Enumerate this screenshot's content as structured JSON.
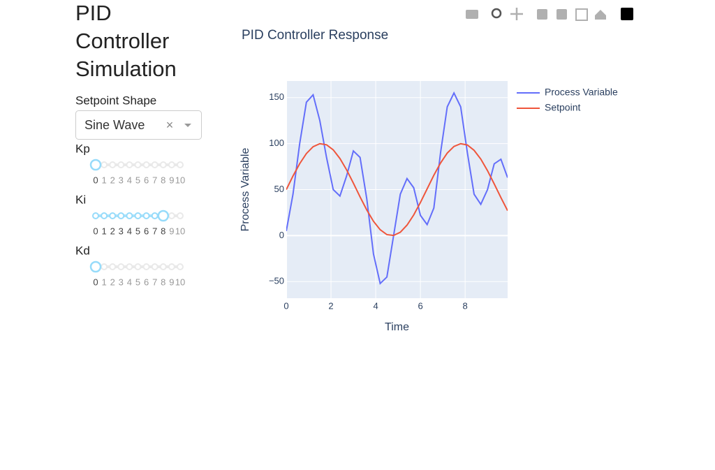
{
  "app": {
    "title": [
      "PID",
      "Controller",
      "Simulation"
    ],
    "dropdown_label": "Setpoint Shape",
    "dropdown_value": "Sine Wave",
    "sliders": [
      {
        "label": "Kp",
        "value": 0,
        "marks": [
          0,
          1,
          2,
          3,
          4,
          5,
          6,
          7,
          8,
          9,
          10
        ]
      },
      {
        "label": "Ki",
        "value": 8,
        "marks": [
          0,
          1,
          2,
          3,
          4,
          5,
          6,
          7,
          8,
          9,
          10
        ]
      },
      {
        "label": "Kd",
        "value": 0,
        "marks": [
          0,
          1,
          2,
          3,
          4,
          5,
          6,
          7,
          8,
          9,
          10
        ]
      }
    ]
  },
  "chart_data": {
    "type": "line",
    "title": "PID Controller Response",
    "x_label": "Time",
    "y_label": "Process Variable",
    "x": [
      0,
      0.3,
      0.6,
      0.9,
      1.2,
      1.5,
      1.8,
      2.1,
      2.4,
      2.7,
      3.0,
      3.3,
      3.6,
      3.9,
      4.2,
      4.5,
      4.8,
      5.1,
      5.4,
      5.7,
      6.0,
      6.3,
      6.6,
      6.9,
      7.2,
      7.5,
      7.8,
      8.1,
      8.4,
      8.7,
      9.0,
      9.3,
      9.6,
      9.9
    ],
    "series": [
      {
        "name": "Process Variable",
        "color": "#636efa",
        "values": [
          5,
          45,
          100,
          145,
          153,
          125,
          85,
          50,
          43,
          65,
          92,
          85,
          40,
          -20,
          -52,
          -45,
          0,
          45,
          62,
          52,
          22,
          12,
          30,
          90,
          140,
          155,
          140,
          90,
          45,
          34,
          50,
          78,
          83,
          63
        ]
      },
      {
        "name": "Setpoint",
        "color": "#ef553b",
        "values": [
          50,
          64.8,
          78.2,
          89.2,
          96.6,
          99.9,
          98.7,
          93.2,
          83.8,
          71.4,
          57.1,
          42.1,
          27.9,
          15.6,
          6.4,
          1.1,
          0.2,
          3.7,
          11.4,
          22.5,
          36.0,
          50.8,
          65.6,
          78.9,
          89.7,
          96.9,
          99.9,
          98.5,
          92.7,
          83.2,
          70.6,
          56.2,
          41.3,
          27.1
        ]
      }
    ],
    "xlim": [
      0,
      9.9
    ],
    "ylim": [
      -68,
      168
    ],
    "xticks": [
      0,
      2,
      4,
      6,
      8
    ],
    "yticks": [
      {
        "value": -50,
        "label": "−50"
      },
      0,
      50,
      100,
      150
    ],
    "grid": true
  }
}
